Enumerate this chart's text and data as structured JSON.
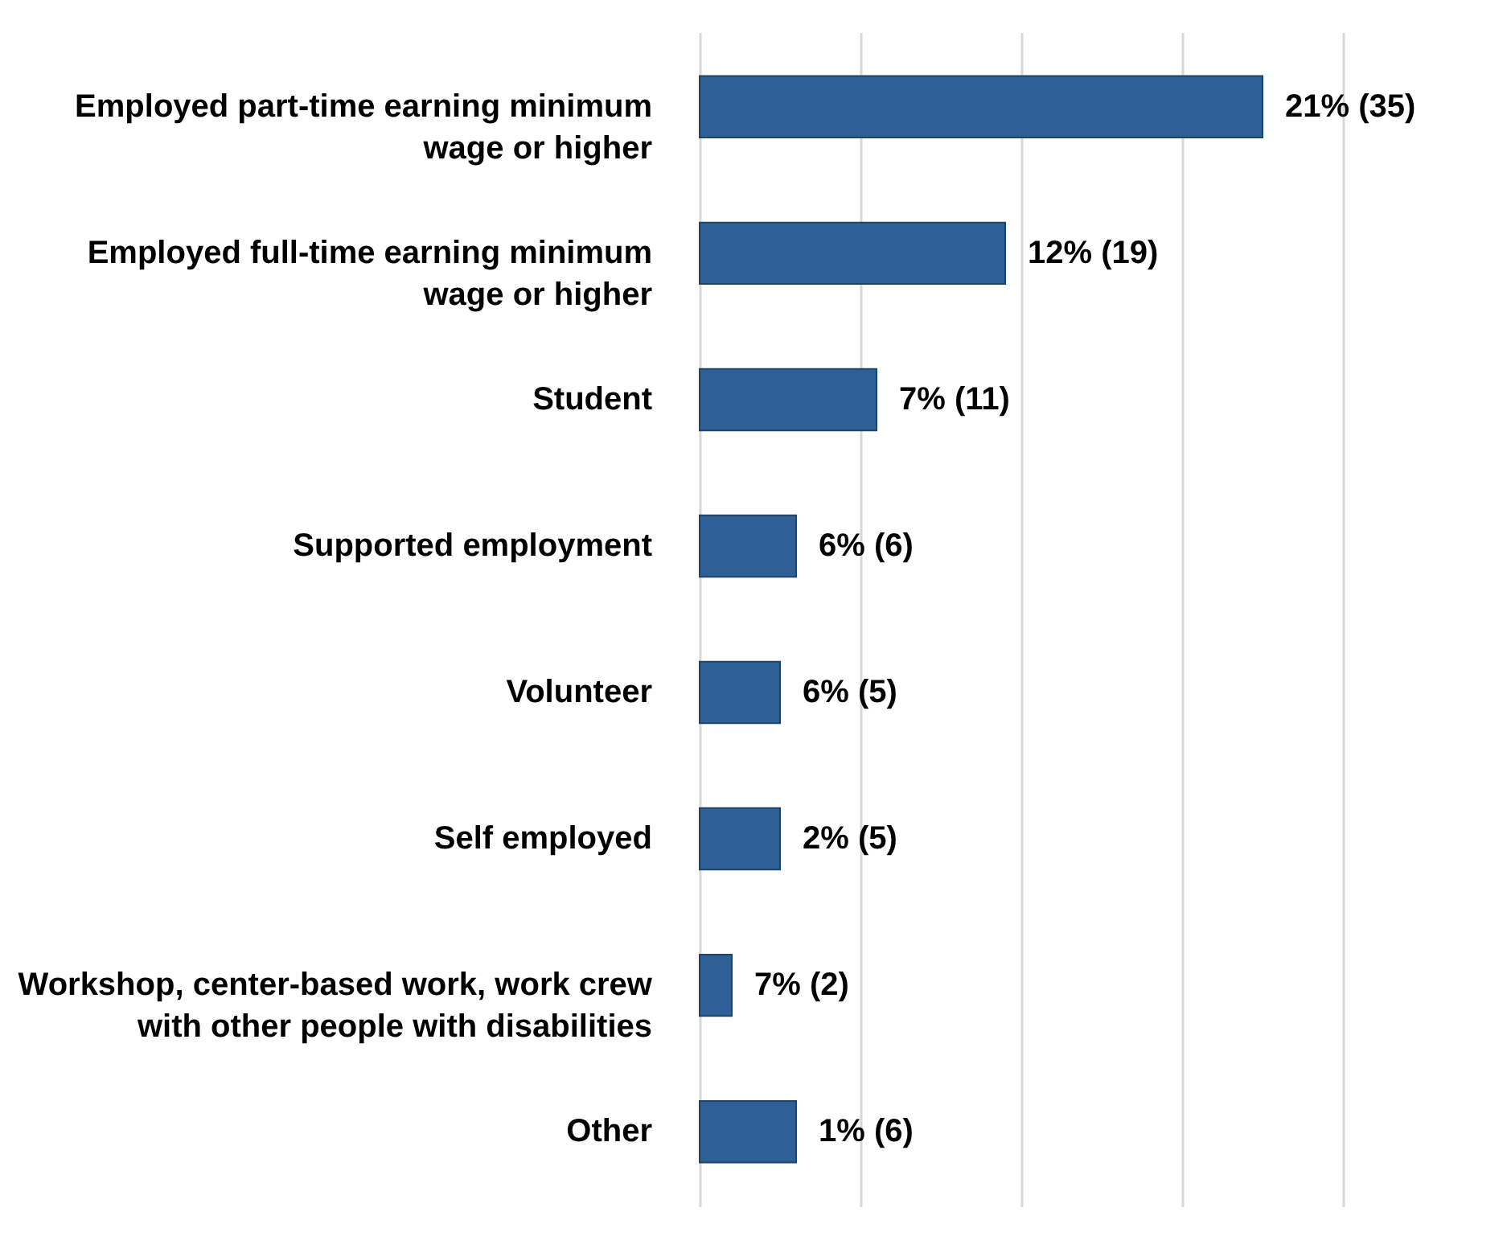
{
  "chart_data": {
    "type": "bar",
    "orientation": "horizontal",
    "categories": [
      "Employed part-time earning minimum wage or higher",
      "Employed full-time earning minimum wage or higher",
      "Student",
      "Supported employment",
      "Volunteer",
      "Self employed",
      "Workshop, center-based work, work crew with other people with disabilities",
      "Other"
    ],
    "values": [
      35,
      19,
      11,
      6,
      5,
      5,
      2,
      6
    ],
    "value_labels": [
      "21% (35)",
      "12% (19)",
      "7% (11)",
      "6% (6)",
      "6% (5)",
      "2% (5)",
      "7% (2)",
      "1% (6)"
    ],
    "color": "#2e6096",
    "xlim": [
      0,
      40
    ],
    "xticks": [
      {
        "value": 0,
        "label": null
      },
      {
        "value": 10,
        "label": null
      },
      {
        "value": 20,
        "label": null
      },
      {
        "value": 30,
        "label": null
      },
      {
        "value": 40,
        "label": null
      }
    ],
    "grid": "x",
    "tick_labels": "y"
  }
}
